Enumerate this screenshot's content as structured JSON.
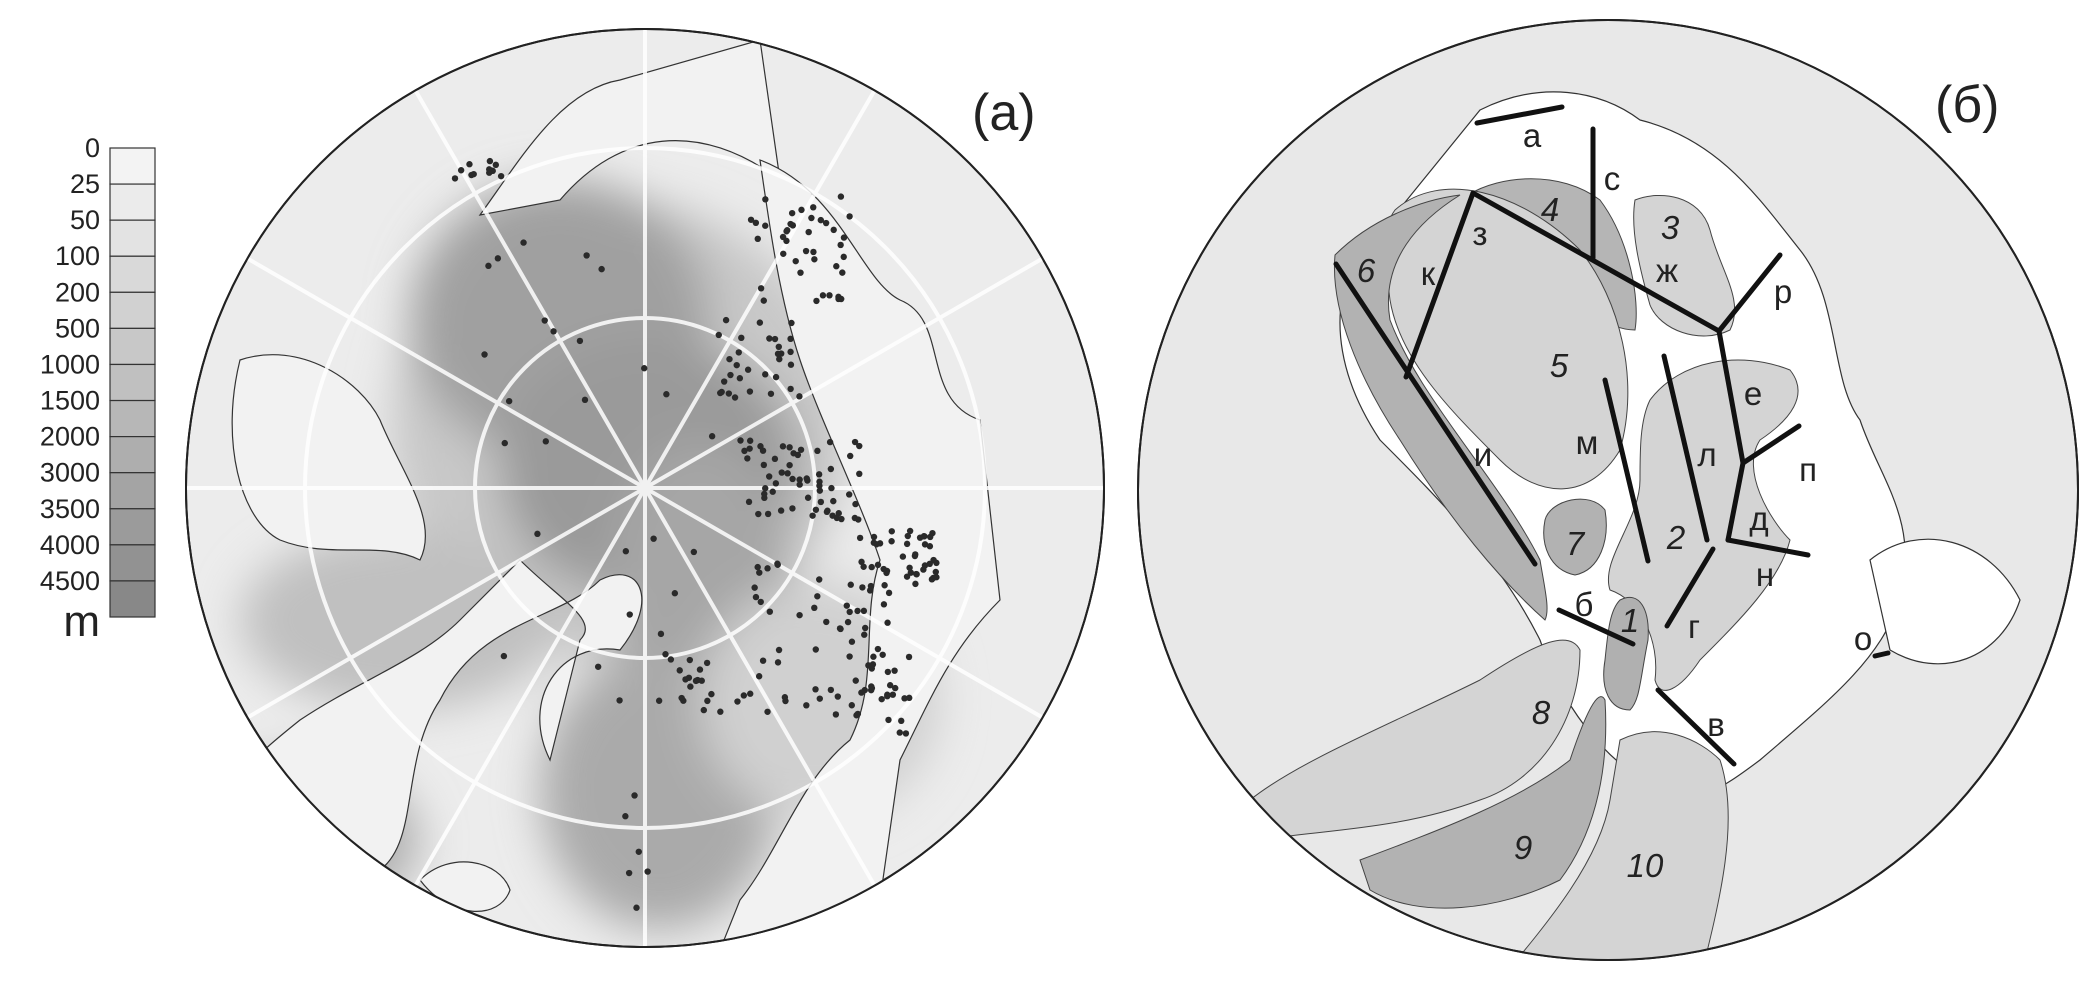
{
  "colorbar": {
    "levels": [
      "0",
      "25",
      "50",
      "100",
      "200",
      "500",
      "1000",
      "1500",
      "2000",
      "3000",
      "3500",
      "4000",
      "4500"
    ],
    "unit": "m",
    "colors": [
      "#f3f3f3",
      "#ebebeb",
      "#e3e3e3",
      "#d9d9d9",
      "#d1d1d1",
      "#c8c8c8",
      "#c0c0c0",
      "#b7b7b7",
      "#aeaeae",
      "#a4a4a4",
      "#9b9b9b",
      "#929292",
      "#888888"
    ]
  },
  "panel_a": {
    "label": "(a)"
  },
  "panel_b": {
    "label": "(б)",
    "sections": [
      "а",
      "с",
      "з",
      "к",
      "ж",
      "р",
      "е",
      "п",
      "д",
      "н",
      "г",
      "л",
      "м",
      "и",
      "б",
      "в",
      "о"
    ],
    "zones": [
      "1",
      "2",
      "3",
      "4",
      "5",
      "6",
      "7",
      "8",
      "9",
      "10"
    ]
  }
}
